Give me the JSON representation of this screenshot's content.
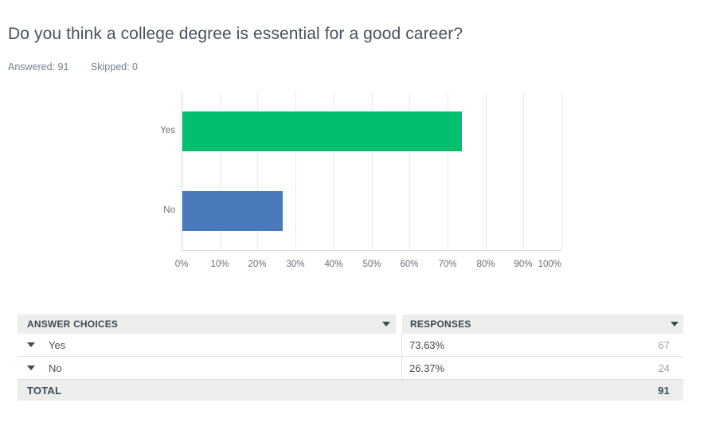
{
  "question": {
    "title": "Do you think a college degree is essential for a good career?",
    "answered_label": "Answered: 91",
    "skipped_label": "Skipped: 0"
  },
  "chart_data": {
    "type": "bar",
    "orientation": "horizontal",
    "title": "",
    "xlabel": "",
    "ylabel": "",
    "categories": [
      "Yes",
      "No"
    ],
    "values": [
      73.63,
      26.37
    ],
    "bar_colors": [
      "#00BF6F",
      "#4A79BC"
    ],
    "xlim": [
      0,
      100
    ],
    "x_tick_step": 10,
    "x_tick_labels": [
      "0%",
      "10%",
      "20%",
      "30%",
      "40%",
      "50%",
      "60%",
      "70%",
      "80%",
      "90%",
      "100%"
    ],
    "grid": "vertical"
  },
  "table": {
    "header": {
      "answer_choices_label": "ANSWER CHOICES",
      "responses_label": "RESPONSES"
    },
    "rows": [
      {
        "choice": "Yes",
        "percent": "73.63%",
        "count": "67"
      },
      {
        "choice": "No",
        "percent": "26.37%",
        "count": "24"
      }
    ],
    "total_label": "TOTAL",
    "total_count": "91"
  },
  "colors": {
    "bar_yes": "#00BF6F",
    "bar_no": "#4A79BC",
    "gridline": "#E9EAEB",
    "axis": "#D5D8DA",
    "header_bg": "#ECEDED",
    "dark_text": "#3E4A54"
  }
}
